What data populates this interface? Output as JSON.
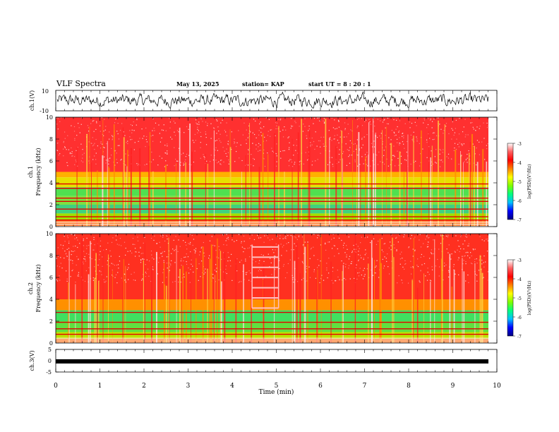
{
  "header": {
    "title": "VLF Spectra",
    "date": "May 13, 2025",
    "station": "station= KAP",
    "start": "start  UT  =   8  : 20 : 1"
  },
  "chart_data": [
    {
      "type": "line",
      "panel": "ch1-waveform",
      "ylabel": "ch.1(V)",
      "ylim": [
        -10,
        10
      ],
      "yticks": [
        "10",
        "-10"
      ],
      "xlim": [
        0,
        10
      ]
    },
    {
      "type": "heatmap",
      "panel": "ch1-spectrogram",
      "ylabel_top": "ch.1",
      "ylabel": "Frequency  (kHz)",
      "ylim": [
        0,
        10
      ],
      "yticks": [
        "0",
        "2",
        "4",
        "6",
        "8",
        "10"
      ],
      "xlim": [
        0,
        10
      ],
      "colorbar": {
        "label": "log(PSD)(V²/Hz)",
        "range": [
          -7,
          -3
        ],
        "ticks": [
          "-3",
          "-4",
          "-5",
          "-6",
          "-7"
        ],
        "colors": [
          "#000080",
          "#0000ff",
          "#00c0ff",
          "#00ff80",
          "#80ff00",
          "#ffff00",
          "#ff8000",
          "#ff0000",
          "#ff6060",
          "#ffffff"
        ]
      },
      "bands": [
        {
          "from": 5.0,
          "to": 10.0,
          "color": "#ff3030"
        },
        {
          "from": 4.5,
          "to": 5.0,
          "color": "#ffb000"
        },
        {
          "from": 3.6,
          "to": 4.5,
          "color": "#e8e000"
        },
        {
          "from": 2.8,
          "to": 3.6,
          "color": "#50e050"
        },
        {
          "from": 2.0,
          "to": 2.8,
          "color": "#80e040"
        },
        {
          "from": 1.2,
          "to": 2.0,
          "color": "#40d080"
        },
        {
          "from": 0.6,
          "to": 1.2,
          "color": "#a0e000"
        },
        {
          "from": 0.0,
          "to": 0.6,
          "color": "#ff6000"
        }
      ],
      "lines_khz": [
        3.9,
        3.5,
        2.6,
        2.3,
        1.6,
        0.9,
        0.6
      ]
    },
    {
      "type": "heatmap",
      "panel": "ch2-spectrogram",
      "ylabel_top": "ch.2",
      "ylabel": "Frequency  (kHz)",
      "ylim": [
        0,
        10
      ],
      "yticks": [
        "0",
        "2",
        "4",
        "6",
        "8",
        "10"
      ],
      "xlim": [
        0,
        10
      ],
      "colorbar": {
        "label": "log(PSD)(V²/Hz)",
        "range": [
          -7,
          -3
        ],
        "ticks": [
          "-3",
          "-4",
          "-5",
          "-6",
          "-7"
        ],
        "colors": [
          "#000080",
          "#0000ff",
          "#00c0ff",
          "#00ff80",
          "#80ff00",
          "#ffff00",
          "#ff8000",
          "#ff0000",
          "#ff6060",
          "#ffffff"
        ]
      },
      "bands": [
        {
          "from": 4.0,
          "to": 10.0,
          "color": "#ff3020"
        },
        {
          "from": 3.0,
          "to": 4.0,
          "color": "#ff9000"
        },
        {
          "from": 2.0,
          "to": 3.0,
          "color": "#40e060"
        },
        {
          "from": 1.0,
          "to": 2.0,
          "color": "#60e040"
        },
        {
          "from": 0.4,
          "to": 1.0,
          "color": "#c0e000"
        },
        {
          "from": 0.0,
          "to": 0.4,
          "color": "#ff6000"
        }
      ],
      "lines_khz": [
        2.8,
        1.9,
        1.3,
        0.8
      ],
      "boxed_region": {
        "x": [
          4.45,
          5.05
        ],
        "khz": [
          3.2,
          9.0
        ]
      }
    },
    {
      "type": "line",
      "panel": "ch3-waveform",
      "ylabel": "ch.3(V)",
      "ylim": [
        -5,
        5
      ],
      "yticks": [
        "5",
        "0",
        "-5"
      ],
      "xlim": [
        0,
        10
      ],
      "value": -0.3
    },
    {
      "type": "axis",
      "panel": "time-axis",
      "xlabel": "Time  (min)",
      "xticks": [
        "0",
        "1",
        "2",
        "3",
        "4",
        "5",
        "6",
        "7",
        "8",
        "9",
        "10"
      ]
    }
  ]
}
